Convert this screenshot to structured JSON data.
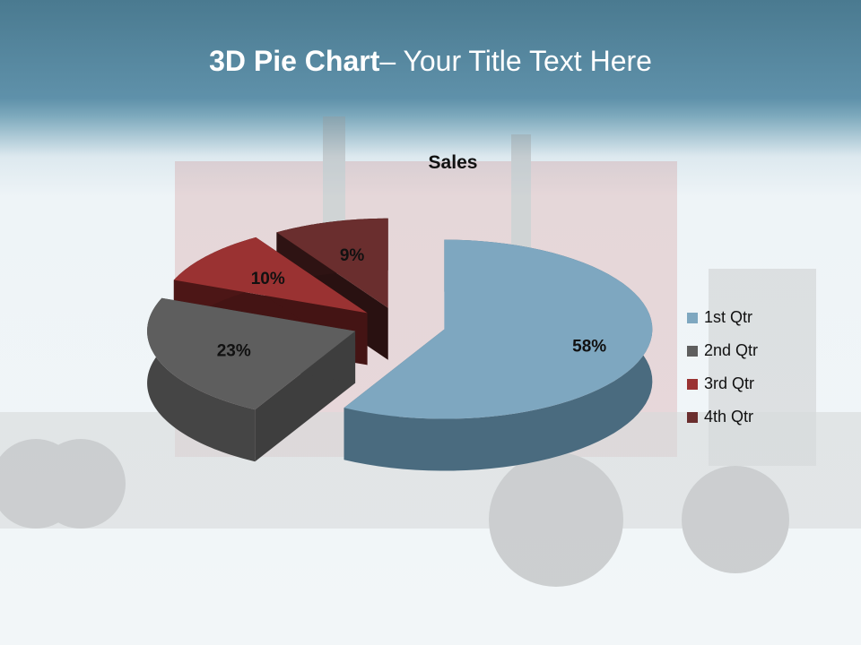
{
  "slide": {
    "title_bold": "3D Pie Chart",
    "title_rest": "– Your Title Text Here"
  },
  "chart_data": {
    "type": "pie",
    "style": "3d-exploded",
    "title": "Sales",
    "categories": [
      "1st Qtr",
      "2nd Qtr",
      "3rd Qtr",
      "4th Qtr"
    ],
    "values": [
      58,
      23,
      10,
      9
    ],
    "labels": [
      "58%",
      "23%",
      "10%",
      "9%"
    ],
    "colors": [
      "#7ea7c0",
      "#5e5e5e",
      "#9a3232",
      "#6a2e2e"
    ],
    "legend_position": "right"
  }
}
